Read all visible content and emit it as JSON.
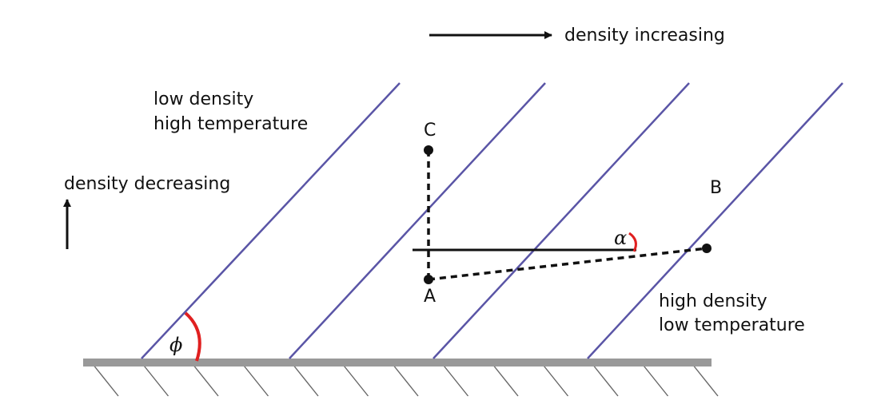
{
  "labels": {
    "density_increasing": "density increasing",
    "density_decreasing": "density decreasing",
    "low_density": "low density",
    "high_temperature": "high temperature",
    "high_density": "high density",
    "low_temperature": "low temperature"
  },
  "points": {
    "A": "A",
    "B": "B",
    "C": "C"
  },
  "angles": {
    "alpha": "α",
    "phi": "ϕ"
  },
  "colors": {
    "isopycnal": "#5a55a6",
    "angle_arc": "#e02020",
    "ground": "#999999",
    "hatch": "#666666",
    "ink": "#111111"
  }
}
